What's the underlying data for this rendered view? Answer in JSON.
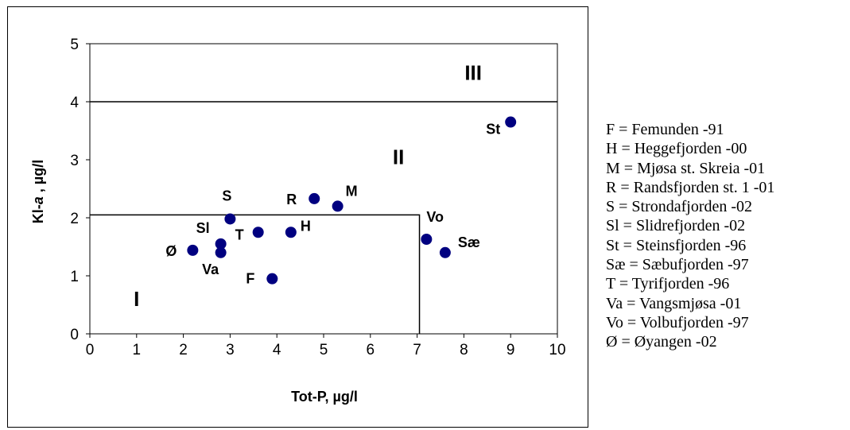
{
  "chart_data": {
    "type": "scatter",
    "title": "",
    "xlabel": "Tot-P, µg/l",
    "ylabel_parts": [
      "Kl-",
      "a",
      " , µg/l"
    ],
    "xlim": [
      0,
      10
    ],
    "ylim": [
      0,
      5
    ],
    "x_ticks": [
      "0",
      "1",
      "2",
      "3",
      "4",
      "5",
      "6",
      "7",
      "8",
      "9",
      "10"
    ],
    "y_ticks": [
      "0",
      "1",
      "2",
      "3",
      "4",
      "5"
    ],
    "grid": false,
    "marker_color": "#000080",
    "points": [
      {
        "label": "F",
        "x": 3.9,
        "y": 0.95
      },
      {
        "label": "H",
        "x": 4.3,
        "y": 1.75
      },
      {
        "label": "M",
        "x": 5.3,
        "y": 2.2
      },
      {
        "label": "R",
        "x": 4.8,
        "y": 2.33
      },
      {
        "label": "S",
        "x": 3.0,
        "y": 1.98
      },
      {
        "label": "Sl",
        "x": 2.8,
        "y": 1.55
      },
      {
        "label": "St",
        "x": 9.0,
        "y": 3.65
      },
      {
        "label": "Sæ",
        "x": 7.6,
        "y": 1.4
      },
      {
        "label": "T",
        "x": 3.6,
        "y": 1.75
      },
      {
        "label": "Va",
        "x": 2.8,
        "y": 1.4
      },
      {
        "label": "Vo",
        "x": 7.2,
        "y": 1.63
      },
      {
        "label": "Ø",
        "x": 2.2,
        "y": 1.44
      }
    ],
    "boundaries": {
      "class_I_top_y": 2.05,
      "class_I_right_x": 7.05,
      "class_II_top_y": 4.0
    },
    "region_labels": [
      {
        "text": "I",
        "x": 1.0,
        "y": 0.6
      },
      {
        "text": "II",
        "x": 6.6,
        "y": 3.05
      },
      {
        "text": "III",
        "x": 8.2,
        "y": 4.5
      }
    ],
    "legend": [
      "F = Femunden -91",
      "H = Heggefjorden -00",
      "M = Mjøsa st. Skreia -01",
      "R = Randsfjorden st. 1 -01",
      "S = Strondafjorden -02",
      "Sl = Slidrefjorden -02",
      "St = Steinsfjorden -96",
      "Sæ = Sæbufjorden -97",
      "T = Tyrifjorden -96",
      "Va = Vangsmjøsa -01",
      "Vo = Volbufjorden -97",
      "Ø = Øyangen -02"
    ]
  }
}
